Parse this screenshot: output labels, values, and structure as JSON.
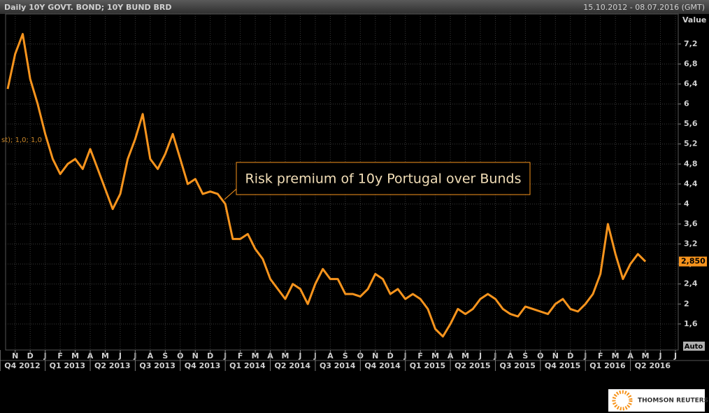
{
  "chart_data": {
    "type": "line",
    "title": "Daily 10Y GOVT. BOND; 10Y BUND BRD",
    "date_range": "15.10.2012 - 08.07.2016 (GMT)",
    "ylabel": "Value",
    "annotation": "Risk premium of 10y Portugal over Bunds",
    "legend_fragment": "st);  1,0; 1,0",
    "scale_mode": "Auto",
    "brand": "THOMSON REUTERS",
    "color": "#f7941d",
    "grid": true,
    "categories": [
      null,
      "N",
      null,
      "D",
      null,
      "J",
      null,
      "F",
      null,
      "M",
      null,
      "A",
      null,
      "M",
      null,
      "J",
      null,
      "J",
      null,
      "A",
      null,
      "S",
      null,
      "O",
      null,
      "N",
      null,
      "D",
      null,
      "J",
      null,
      "F",
      null,
      "M",
      null,
      "A",
      null,
      "M",
      null,
      "J",
      null,
      "J",
      null,
      "A",
      null,
      "S",
      null,
      "O",
      null,
      "N",
      null,
      "D",
      null,
      "J",
      null,
      "F",
      null,
      "M",
      null,
      "A",
      null,
      "M",
      null,
      "J",
      null,
      "J",
      null,
      "A",
      null,
      "S",
      null,
      "O",
      null,
      "N",
      null,
      "D",
      null,
      "J",
      null,
      "F",
      null,
      "M",
      null,
      "A",
      null,
      "M",
      null,
      "J",
      null,
      "J"
    ],
    "quarters": [
      "Q4 2012",
      "Q1 2013",
      "Q2 2013",
      "Q3 2013",
      "Q4 2013",
      "Q1 2014",
      "Q2 2014",
      "Q3 2014",
      "Q4 2014",
      "Q1 2015",
      "Q2 2015",
      "Q3 2015",
      "Q4 2015",
      "Q1 2016",
      "Q2 2016"
    ],
    "values": [
      6.3,
      7.0,
      7.4,
      6.5,
      6.0,
      5.4,
      4.9,
      4.6,
      4.8,
      4.9,
      4.7,
      5.1,
      4.7,
      4.3,
      3.9,
      4.2,
      4.9,
      5.3,
      5.8,
      4.9,
      4.7,
      5.0,
      5.4,
      4.9,
      4.4,
      4.5,
      4.2,
      4.25,
      4.2,
      4.0,
      3.3,
      3.3,
      3.4,
      3.1,
      2.9,
      2.5,
      2.3,
      2.1,
      2.4,
      2.3,
      2.0,
      2.4,
      2.7,
      2.5,
      2.5,
      2.2,
      2.2,
      2.15,
      2.3,
      2.6,
      2.5,
      2.2,
      2.3,
      2.1,
      2.2,
      2.1,
      1.9,
      1.5,
      1.35,
      1.6,
      1.9,
      1.8,
      1.9,
      2.1,
      2.2,
      2.1,
      1.9,
      1.8,
      1.75,
      1.95,
      1.9,
      1.85,
      1.8,
      2.0,
      2.1,
      1.9,
      1.85,
      2.0,
      2.2,
      2.6,
      3.6,
      3.0,
      2.5,
      2.8,
      3.0,
      2.85,
      null,
      null,
      null,
      null
    ],
    "last_value": {
      "value": 2.85,
      "label": "2,850"
    },
    "ylim": [
      1.08,
      7.8
    ],
    "yticks": [
      {
        "value": 1.6,
        "label": "1,6"
      },
      2,
      {
        "value": 2.4,
        "label": "2,4"
      },
      {
        "value": 2.8,
        "label": "2,8"
      },
      {
        "value": 3.2,
        "label": "3,2"
      },
      {
        "value": 3.6,
        "label": "3,6"
      },
      4,
      {
        "value": 4.4,
        "label": "4,4"
      },
      {
        "value": 4.8,
        "label": "4,8"
      },
      {
        "value": 5.2,
        "label": "5,2"
      },
      {
        "value": 5.6,
        "label": "5,6"
      },
      6,
      {
        "value": 6.4,
        "label": "6,4"
      },
      {
        "value": 6.8,
        "label": "6,8"
      },
      {
        "value": 7.2,
        "label": "7,2"
      }
    ]
  }
}
